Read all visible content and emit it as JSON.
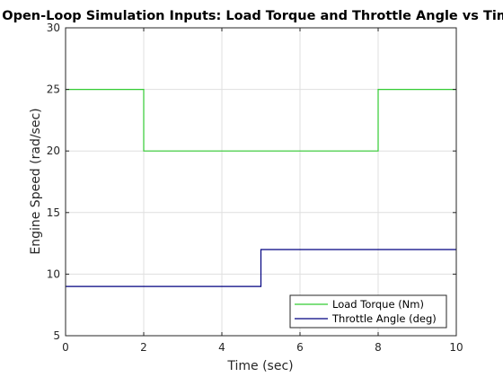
{
  "chart_data": {
    "type": "line",
    "title": "Open-Loop Simulation Inputs: Load Torque and Throttle Angle vs Time",
    "xlabel": "Time (sec)",
    "ylabel": "Engine Speed (rad/sec)",
    "xlim": [
      0,
      10
    ],
    "ylim": [
      5,
      30
    ],
    "xticks": [
      "0",
      "2",
      "4",
      "6",
      "8",
      "10"
    ],
    "yticks": [
      "5",
      "10",
      "15",
      "20",
      "25",
      "30"
    ],
    "grid": true,
    "legend_position": "bottom-right",
    "series": [
      {
        "name": "Load Torque (Nm)",
        "color": "#33cc33",
        "x": [
          0,
          2,
          2,
          8,
          8,
          10
        ],
        "y": [
          25,
          25,
          20,
          20,
          25,
          25
        ]
      },
      {
        "name": "Throttle Angle (deg)",
        "color": "#000080",
        "x": [
          0,
          5,
          5,
          10
        ],
        "y": [
          9,
          9,
          12,
          12
        ]
      }
    ]
  }
}
